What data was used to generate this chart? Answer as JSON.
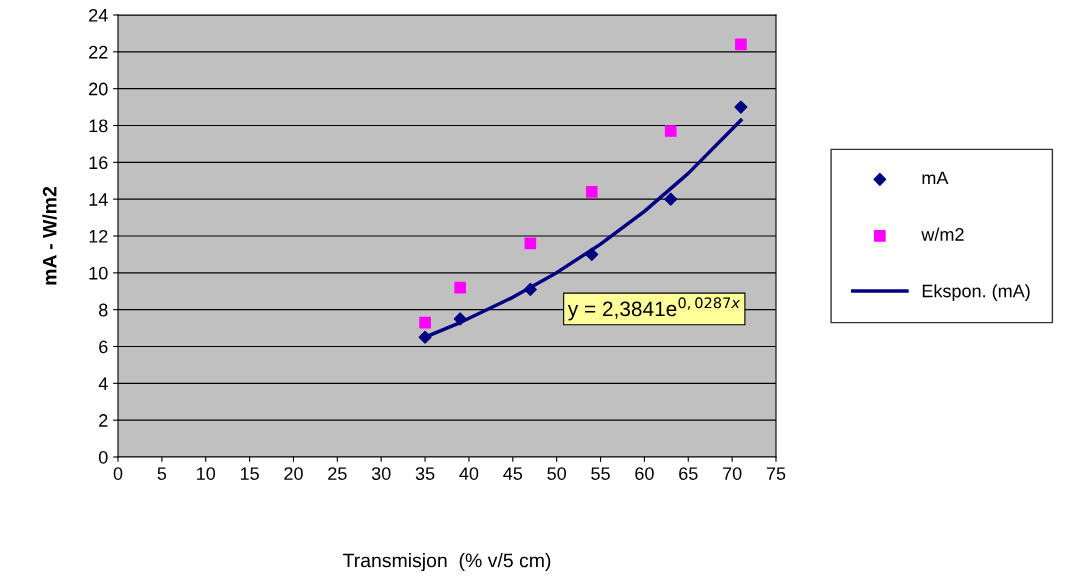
{
  "chart_data": {
    "type": "scatter",
    "xlabel": "Transmisjon  (% v/5 cm)",
    "ylabel": "mA - W/m2",
    "xlim": [
      0,
      75
    ],
    "xticks": [
      0,
      5,
      10,
      15,
      20,
      25,
      30,
      35,
      40,
      45,
      50,
      55,
      60,
      65,
      70,
      75
    ],
    "ylim": [
      0,
      24
    ],
    "yticks": [
      0,
      2,
      4,
      6,
      8,
      10,
      12,
      14,
      16,
      18,
      20,
      22,
      24
    ],
    "grid": "y",
    "legend": "right",
    "series": [
      {
        "name": "mA",
        "marker": "diamond",
        "color": "#000080",
        "x": [
          35,
          39,
          47,
          54,
          63,
          71
        ],
        "values": [
          6.5,
          7.5,
          9.1,
          11,
          14,
          19
        ]
      },
      {
        "name": "w/m2",
        "marker": "square",
        "color": "#ff00ff",
        "x": [
          35,
          39,
          47,
          54,
          63,
          71
        ],
        "values": [
          7.3,
          9.2,
          11.6,
          14.4,
          17.7,
          22.4
        ]
      },
      {
        "name": "Ekspon. (mA)",
        "type": "line",
        "marker": "none",
        "color": "#000080",
        "x": [
          35,
          39,
          45,
          50,
          55,
          60,
          65,
          71
        ],
        "values": [
          6.51,
          7.3,
          8.67,
          10.01,
          11.56,
          13.34,
          15.4,
          18.29
        ]
      }
    ],
    "annotations": [
      "y = 2,3841e$^{0,0287x}$"
    ]
  }
}
